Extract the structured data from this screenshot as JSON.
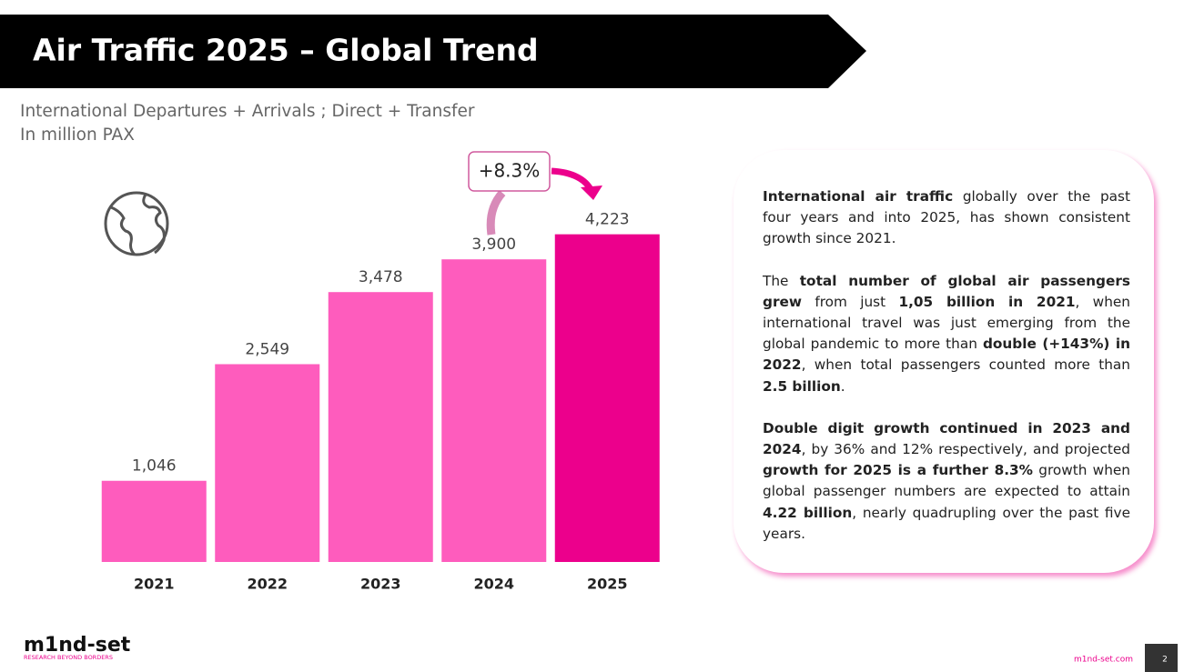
{
  "header": {
    "title": "Air Traffic 2025 – Global Trend"
  },
  "chart_data": {
    "type": "bar",
    "subtitle": [
      "International Departures + Arrivals ; Direct + Transfer",
      "In million PAX"
    ],
    "categories": [
      "2021",
      "2022",
      "2023",
      "2024",
      "2025"
    ],
    "values": [
      1046,
      2549,
      3478,
      3900,
      4223
    ],
    "value_labels": [
      "1,046",
      "2,549",
      "3,478",
      "3,900",
      "4,223"
    ],
    "colors": [
      "#fe5cbd",
      "#fe5cbd",
      "#fe5cbd",
      "#fe5cbd",
      "#ec008c"
    ],
    "ylim": [
      0,
      4500
    ],
    "annotation": "+8.3%"
  },
  "panel": {
    "paragraphs": [
      [
        {
          "text": "International air traffic",
          "bold": true
        },
        {
          "text": " globally over the past four years and into 2025, has shown consistent growth since 2021.",
          "bold": false
        }
      ],
      [
        {
          "text": "The ",
          "bold": false
        },
        {
          "text": "total number of global air passengers grew",
          "bold": true
        },
        {
          "text": " from just ",
          "bold": false
        },
        {
          "text": "1,05 billion in 2021",
          "bold": true
        },
        {
          "text": ", when international travel was just emerging from the global pandemic to more than ",
          "bold": false
        },
        {
          "text": "double (+143%) in 2022",
          "bold": true
        },
        {
          "text": ", when total passengers counted more than ",
          "bold": false
        },
        {
          "text": "2.5 billion",
          "bold": true
        },
        {
          "text": ".",
          "bold": false
        }
      ],
      [
        {
          "text": "Double digit growth continued in 2023 and 2024",
          "bold": true
        },
        {
          "text": ", by 36% and 12% respectively, and projected ",
          "bold": false
        },
        {
          "text": "growth for 2025 is a further 8.3%",
          "bold": true
        },
        {
          "text": " growth when global passenger numbers are expected to attain ",
          "bold": false
        },
        {
          "text": "4.22 billion",
          "bold": true
        },
        {
          "text": ", nearly quadrupling over the past five years.",
          "bold": false
        }
      ]
    ]
  },
  "footer": {
    "logo": "m1nd-set",
    "tagline": "RESEARCH BEYOND BORDERS",
    "website": "m1nd-set.com",
    "page": "2"
  }
}
